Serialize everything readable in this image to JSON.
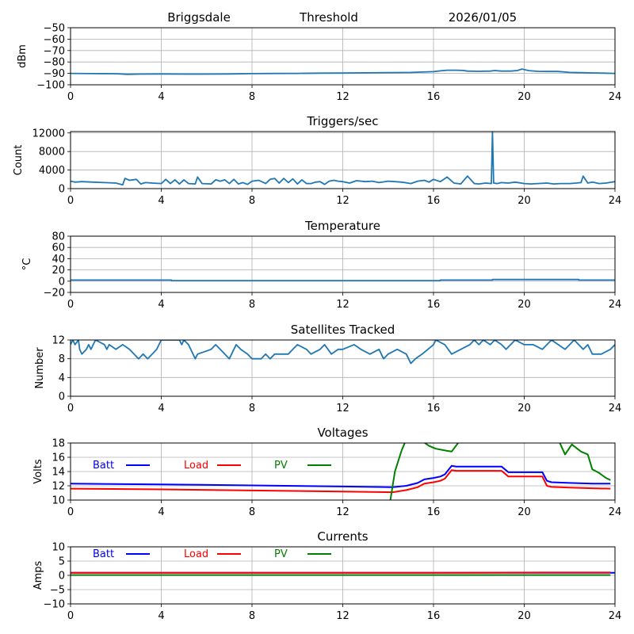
{
  "header": {
    "station": "Briggsdale",
    "first_panel": "Threshold",
    "date": "2026/01/05"
  },
  "colors": {
    "series_default": "#1f77b4",
    "batt": "#0000ff",
    "load": "#ff0000",
    "pv": "#008000",
    "grid": "#b0b0b0"
  },
  "chart_data": [
    {
      "type": "line",
      "id": "threshold",
      "title": "",
      "xlabel": "",
      "ylabel": "dBm",
      "xlim": [
        0,
        24
      ],
      "ylim": [
        -100,
        -50
      ],
      "xticks": [
        0,
        4,
        8,
        12,
        16,
        20,
        24
      ],
      "xtick_labels": [
        "0",
        "4",
        "8",
        "12",
        "16",
        "20",
        "24"
      ],
      "yticks": [
        -100,
        -90,
        -80,
        -70,
        -60,
        -50
      ],
      "ytick_labels": [
        "−100",
        "−90",
        "−80",
        "−70",
        "−60",
        "−50"
      ],
      "grid": true,
      "series": [
        {
          "name": "Threshold",
          "color": "#1f77b4",
          "x": [
            0,
            1,
            2,
            2.5,
            3,
            4,
            5,
            6,
            7,
            8,
            9,
            10,
            11,
            12,
            13,
            14,
            15,
            15.5,
            16,
            16.3,
            16.6,
            17,
            17.3,
            17.5,
            18,
            18.5,
            18.7,
            19,
            19.4,
            19.7,
            19.9,
            20.2,
            20.6,
            21,
            21.5,
            22,
            22.5,
            23,
            23.5,
            24
          ],
          "y": [
            -90,
            -90.2,
            -90.3,
            -90.8,
            -90.6,
            -90.5,
            -90.6,
            -90.6,
            -90.5,
            -90.2,
            -90.1,
            -90,
            -89.8,
            -89.7,
            -89.5,
            -89.3,
            -89.2,
            -88.8,
            -88.5,
            -87.8,
            -87.2,
            -87.2,
            -87.4,
            -88,
            -88.2,
            -88,
            -87.5,
            -88,
            -88,
            -87.5,
            -86.2,
            -87.6,
            -88.2,
            -88.3,
            -88.3,
            -89.2,
            -89.4,
            -89.6,
            -89.8,
            -90
          ]
        }
      ]
    },
    {
      "type": "line",
      "id": "triggers",
      "title": "Triggers/sec",
      "xlabel": "",
      "ylabel": "Count",
      "xlim": [
        0,
        24
      ],
      "ylim": [
        0,
        12300
      ],
      "xticks": [
        0,
        4,
        8,
        12,
        16,
        20,
        24
      ],
      "xtick_labels": [
        "0",
        "4",
        "8",
        "12",
        "16",
        "20",
        "24"
      ],
      "yticks": [
        0,
        4000,
        8000,
        12000
      ],
      "ytick_labels": [
        "0",
        "4000",
        "8000",
        "12000"
      ],
      "grid": true,
      "series": [
        {
          "name": "Triggers",
          "color": "#1f77b4",
          "x": [
            0,
            0.2,
            0.5,
            1,
            1.5,
            2,
            2.3,
            2.4,
            2.6,
            2.9,
            3.1,
            3.3,
            3.6,
            4,
            4.2,
            4.4,
            4.6,
            4.8,
            5,
            5.2,
            5.5,
            5.6,
            5.8,
            6.2,
            6.4,
            6.6,
            6.8,
            7,
            7.2,
            7.4,
            7.6,
            7.8,
            8,
            8.3,
            8.6,
            8.8,
            9,
            9.2,
            9.4,
            9.6,
            9.8,
            10,
            10.2,
            10.4,
            10.6,
            10.8,
            11,
            11.2,
            11.4,
            11.6,
            11.8,
            12,
            12.3,
            12.6,
            13,
            13.3,
            13.6,
            14,
            14.3,
            14.6,
            15,
            15.3,
            15.6,
            15.8,
            16,
            16.3,
            16.6,
            16.9,
            17.2,
            17.5,
            17.8,
            18,
            18.3,
            18.55,
            18.6,
            18.65,
            18.8,
            19,
            19.3,
            19.6,
            20,
            20.3,
            20.6,
            21,
            21.3,
            21.6,
            22,
            22.3,
            22.5,
            22.6,
            22.8,
            23,
            23.3,
            23.6,
            24
          ],
          "y": [
            1600,
            1400,
            1500,
            1400,
            1300,
            1200,
            800,
            2200,
            1800,
            2000,
            1000,
            1300,
            1200,
            1100,
            2000,
            1100,
            1900,
            1000,
            1900,
            1100,
            1000,
            2500,
            1100,
            1000,
            1900,
            1600,
            1900,
            1100,
            2000,
            1000,
            1300,
            900,
            1600,
            1800,
            1100,
            2000,
            2200,
            1200,
            2200,
            1300,
            2100,
            1000,
            1900,
            1100,
            1100,
            1400,
            1500,
            900,
            1600,
            1800,
            1600,
            1500,
            1200,
            1700,
            1500,
            1600,
            1300,
            1600,
            1500,
            1400,
            1100,
            1600,
            1800,
            1400,
            2000,
            1500,
            2500,
            1200,
            1000,
            2700,
            1100,
            1000,
            1200,
            1100,
            12300,
            1200,
            1100,
            1300,
            1200,
            1400,
            1100,
            1000,
            1100,
            1200,
            1000,
            1100,
            1100,
            1200,
            1300,
            2700,
            1200,
            1400,
            1100,
            1200,
            1500
          ]
        }
      ]
    },
    {
      "type": "line",
      "id": "temperature",
      "title": "Temperature",
      "xlabel": "",
      "ylabel": "°C",
      "xlim": [
        0,
        24
      ],
      "ylim": [
        -20,
        80
      ],
      "xticks": [
        0,
        4,
        8,
        12,
        16,
        20,
        24
      ],
      "xtick_labels": [
        "0",
        "4",
        "8",
        "12",
        "16",
        "20",
        "24"
      ],
      "yticks": [
        -20,
        0,
        20,
        40,
        60,
        80
      ],
      "ytick_labels": [
        "−20",
        "0",
        "20",
        "40",
        "60",
        "80"
      ],
      "grid": true,
      "series": [
        {
          "name": "Temperature",
          "color": "#1f77b4",
          "x": [
            0,
            4.45,
            4.45,
            16.3,
            16.3,
            18.6,
            18.6,
            22.4,
            22.4,
            24
          ],
          "y": [
            2,
            2,
            1,
            1,
            2,
            2,
            3,
            3,
            2,
            2
          ]
        }
      ]
    },
    {
      "type": "line",
      "id": "satellites",
      "title": "Satellites Tracked",
      "xlabel": "",
      "ylabel": "Number",
      "xlim": [
        0,
        24
      ],
      "ylim": [
        0,
        12
      ],
      "xticks": [
        0,
        4,
        8,
        12,
        16,
        20,
        24
      ],
      "xtick_labels": [
        "0",
        "4",
        "8",
        "12",
        "16",
        "20",
        "24"
      ],
      "yticks": [
        0,
        4,
        8,
        12
      ],
      "ytick_labels": [
        "0",
        "4",
        "8",
        "12"
      ],
      "grid": true,
      "series": [
        {
          "name": "Satellites",
          "color": "#1f77b4",
          "x": [
            0,
            0.1,
            0.2,
            0.35,
            0.4,
            0.5,
            0.7,
            0.8,
            0.9,
            1.0,
            1.1,
            1.5,
            1.6,
            1.7,
            2.0,
            2.3,
            2.6,
            2.8,
            3.0,
            3.2,
            3.4,
            3.6,
            3.8,
            3.9,
            4.0,
            4.8,
            4.9,
            5.0,
            5.2,
            5.3,
            5.4,
            5.5,
            5.6,
            6.2,
            6.4,
            6.6,
            6.8,
            7.0,
            7.2,
            7.3,
            7.5,
            7.8,
            8.0,
            8.4,
            8.6,
            8.8,
            9.0,
            9.6,
            9.8,
            10.0,
            10.4,
            10.6,
            11.0,
            11.2,
            11.5,
            11.8,
            12.0,
            12.5,
            12.8,
            13.2,
            13.6,
            13.8,
            14.0,
            14.4,
            14.8,
            15.0,
            15.2,
            15.5,
            16.0,
            16.1,
            16.5,
            16.8,
            17.2,
            17.6,
            17.8,
            18.0,
            18.2,
            18.5,
            18.7,
            19.0,
            19.2,
            19.4,
            19.6,
            20.0,
            20.4,
            20.8,
            21.0,
            21.2,
            21.5,
            21.8,
            22.0,
            22.2,
            22.4,
            22.6,
            22.8,
            23.0,
            23.4,
            23.8,
            24.0
          ],
          "y": [
            11,
            12,
            11,
            12,
            10,
            9,
            10,
            11,
            10,
            11,
            12,
            11,
            10,
            11,
            10,
            11,
            10,
            9,
            8,
            9,
            8,
            9,
            10,
            11,
            12,
            12,
            11,
            12,
            11,
            10,
            9,
            8,
            9,
            10,
            11,
            10,
            9,
            8,
            10,
            11,
            10,
            9,
            8,
            8,
            9,
            8,
            9,
            9,
            10,
            11,
            10,
            9,
            10,
            11,
            9,
            10,
            10,
            11,
            10,
            9,
            10,
            8,
            9,
            10,
            9,
            7,
            8,
            9,
            11,
            12,
            11,
            9,
            10,
            11,
            12,
            11,
            12,
            11,
            12,
            11,
            10,
            11,
            12,
            11,
            11,
            10,
            11,
            12,
            11,
            10,
            11,
            12,
            11,
            10,
            11,
            9,
            9,
            10,
            11
          ]
        }
      ]
    },
    {
      "type": "line",
      "id": "voltages",
      "title": "Voltages",
      "xlabel": "",
      "ylabel": "Volts",
      "xlim": [
        0,
        24
      ],
      "ylim": [
        10,
        18
      ],
      "xticks": [
        0,
        4,
        8,
        12,
        16,
        20,
        24
      ],
      "xtick_labels": [
        "0",
        "4",
        "8",
        "12",
        "16",
        "20",
        "24"
      ],
      "yticks": [
        10,
        12,
        14,
        16,
        18
      ],
      "ytick_labels": [
        "10",
        "12",
        "14",
        "16",
        "18"
      ],
      "grid": true,
      "legend": {
        "placement": "top-left",
        "entries": [
          "Batt",
          "Load",
          "PV"
        ]
      },
      "series": [
        {
          "name": "Batt",
          "color": "#0000ff",
          "x": [
            0,
            4,
            8,
            12,
            14.2,
            14.8,
            15.3,
            15.6,
            16.0,
            16.3,
            16.5,
            16.8,
            17.0,
            18.0,
            19.0,
            19.3,
            20.0,
            20.8,
            21.0,
            21.2,
            22.0,
            23.0,
            23.8
          ],
          "y": [
            12.3,
            12.2,
            12.05,
            11.9,
            11.8,
            12.0,
            12.4,
            12.9,
            13.1,
            13.3,
            13.6,
            14.8,
            14.7,
            14.7,
            14.7,
            13.9,
            13.9,
            13.9,
            12.7,
            12.5,
            12.4,
            12.3,
            12.3
          ]
        },
        {
          "name": "Load",
          "color": "#ff0000",
          "x": [
            0,
            4,
            8,
            12,
            14.2,
            14.8,
            15.3,
            15.6,
            16.0,
            16.3,
            16.5,
            16.8,
            17.0,
            18.0,
            19.0,
            19.3,
            20.0,
            20.8,
            21.0,
            21.2,
            22.0,
            23.0,
            23.8
          ],
          "y": [
            11.6,
            11.5,
            11.35,
            11.2,
            11.1,
            11.4,
            11.8,
            12.3,
            12.5,
            12.7,
            13.0,
            14.2,
            14.1,
            14.1,
            14.1,
            13.3,
            13.3,
            13.3,
            12.0,
            11.85,
            11.75,
            11.65,
            11.6
          ]
        },
        {
          "name": "PV",
          "color": "#008000",
          "x": [
            14.1,
            14.3,
            14.6,
            14.8,
            15.4,
            15.8,
            16.1,
            16.6,
            16.8,
            17.2,
            21.5,
            21.8,
            22.1,
            22.5,
            22.8,
            23.0,
            23.3,
            23.6,
            23.8
          ],
          "y": [
            10.0,
            14.0,
            17.0,
            18.5,
            18.5,
            17.6,
            17.2,
            16.9,
            16.8,
            18.5,
            18.5,
            16.4,
            17.8,
            16.8,
            16.4,
            14.3,
            13.8,
            13.1,
            12.8
          ]
        }
      ]
    },
    {
      "type": "line",
      "id": "currents",
      "title": "Currents",
      "xlabel": "",
      "ylabel": "Amps",
      "xlim": [
        0,
        24
      ],
      "ylim": [
        -10,
        10
      ],
      "xticks": [
        0,
        4,
        8,
        12,
        16,
        20,
        24
      ],
      "xtick_labels": [
        "0",
        "4",
        "8",
        "12",
        "16",
        "20",
        "24"
      ],
      "yticks": [
        -10,
        -5,
        0,
        5,
        10
      ],
      "ytick_labels": [
        "−10",
        "−5",
        "0",
        "5",
        "10"
      ],
      "grid": true,
      "legend": {
        "placement": "top-left",
        "entries": [
          "Batt",
          "Load",
          "PV"
        ]
      },
      "series": [
        {
          "name": "Batt",
          "color": "#0000ff",
          "x": [
            0,
            24
          ],
          "y": [
            0.9,
            0.9
          ]
        },
        {
          "name": "Load",
          "color": "#ff0000",
          "x": [
            0,
            8,
            16,
            21,
            23.8
          ],
          "y": [
            0.9,
            0.9,
            0.9,
            1.0,
            1.0
          ]
        },
        {
          "name": "PV",
          "color": "#008000",
          "x": [
            0,
            23.8
          ],
          "y": [
            0.1,
            0.1
          ]
        }
      ]
    }
  ]
}
